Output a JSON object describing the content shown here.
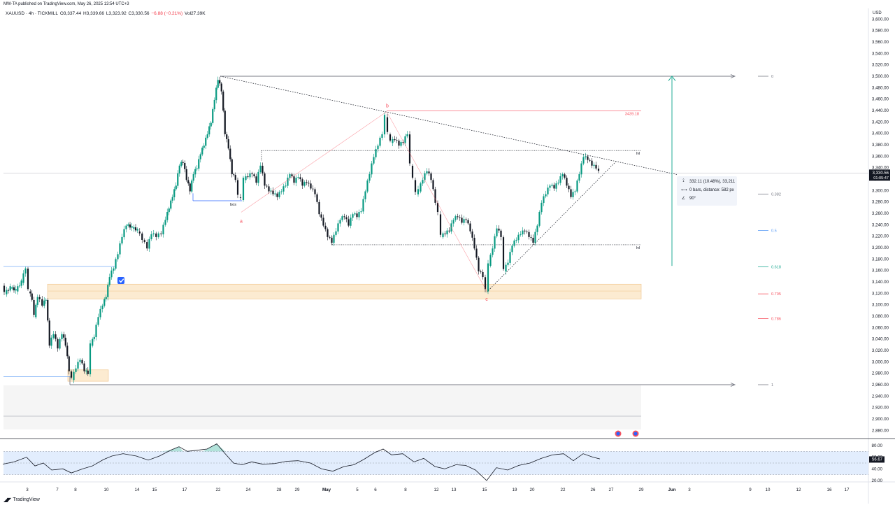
{
  "header": {
    "publisher": "MW-TA published on TradingView.com, May 26, 2025 13:54 UTC+3",
    "symbol": "XAUUSD · 4h · TICKMILL",
    "open": "O3,337.44",
    "high": "H3,339.66",
    "low": "L3,323.92",
    "close": "C3,330.56",
    "change": "−6.88 (−0.21%)",
    "volume": "Vol27.39K",
    "currency": "USD"
  },
  "footer": {
    "brand": "TradingView"
  },
  "colors": {
    "bull": "#089981",
    "bear": "#131722",
    "fib_0": "#787b86",
    "fib_0382": "#787b86",
    "fib_05": "#5b9cf6",
    "fib_0618": "#22ab94",
    "fib_0705": "#f7525f",
    "fib_0786": "#f7525f",
    "wave": "#f7525f",
    "zone": "#fbe4c2",
    "arrow": "#22ab94",
    "rsi_band": "#dbe9fd"
  },
  "chart_data": [
    {
      "type": "candlestick",
      "symbol": "XAUUSD",
      "interval": "4h",
      "x_labels": [
        "3",
        "7",
        "8",
        "10",
        "14",
        "15",
        "17",
        "22",
        "24",
        "28",
        "29",
        "May",
        "5",
        "6",
        "8",
        "12",
        "13",
        "15",
        "19",
        "20",
        "22",
        "26",
        "27",
        "29",
        "Jun",
        "3",
        "9",
        "10",
        "12",
        "16",
        "17"
      ],
      "y_ticks": [
        2880,
        2900,
        2920,
        2940,
        2960,
        2980,
        3000,
        3020,
        3040,
        3060,
        3080,
        3100,
        3120,
        3140,
        3160,
        3180,
        3200,
        3220,
        3240,
        3260,
        3280,
        3300,
        3320,
        3340,
        3360,
        3380,
        3400,
        3420,
        3440,
        3460,
        3480,
        3500,
        3520,
        3540,
        3560,
        3580,
        3600
      ],
      "ylim": [
        2870,
        3620
      ],
      "last_price": "3,330.56",
      "countdown": "01:05:47",
      "price_path": [
        [
          4,
          3135
        ],
        [
          8,
          3120
        ],
        [
          16,
          3130
        ],
        [
          24,
          3125
        ],
        [
          32,
          3140
        ],
        [
          38,
          3165
        ],
        [
          42,
          3125
        ],
        [
          47,
          3110
        ],
        [
          50,
          3080
        ],
        [
          55,
          3115
        ],
        [
          62,
          3100
        ],
        [
          67,
          3110
        ],
        [
          72,
          3030
        ],
        [
          78,
          3050
        ],
        [
          84,
          3025
        ],
        [
          90,
          3050
        ],
        [
          95,
          3030
        ],
        [
          100,
          2985
        ],
        [
          104,
          2970
        ],
        [
          110,
          2990
        ],
        [
          116,
          3005
        ],
        [
          122,
          2985
        ],
        [
          127,
          2980
        ],
        [
          131,
          3030
        ],
        [
          136,
          3045
        ],
        [
          142,
          3080
        ],
        [
          148,
          3100
        ],
        [
          153,
          3115
        ],
        [
          158,
          3150
        ],
        [
          164,
          3165
        ],
        [
          170,
          3190
        ],
        [
          176,
          3220
        ],
        [
          182,
          3240
        ],
        [
          190,
          3235
        ],
        [
          198,
          3230
        ],
        [
          205,
          3215
        ],
        [
          212,
          3200
        ],
        [
          218,
          3225
        ],
        [
          225,
          3220
        ],
        [
          232,
          3225
        ],
        [
          238,
          3250
        ],
        [
          243,
          3270
        ],
        [
          248,
          3290
        ],
        [
          253,
          3310
        ],
        [
          258,
          3345
        ],
        [
          263,
          3350
        ],
        [
          268,
          3320
        ],
        [
          273,
          3300
        ],
        [
          278,
          3330
        ],
        [
          283,
          3340
        ],
        [
          288,
          3365
        ],
        [
          293,
          3380
        ],
        [
          298,
          3400
        ],
        [
          303,
          3420
        ],
        [
          308,
          3460
        ],
        [
          313,
          3495
        ],
        [
          318,
          3475
        ],
        [
          323,
          3400
        ],
        [
          328,
          3375
        ],
        [
          333,
          3330
        ],
        [
          338,
          3320
        ],
        [
          342,
          3290
        ],
        [
          346,
          3285
        ],
        [
          350,
          3320
        ],
        [
          356,
          3325
        ],
        [
          362,
          3330
        ],
        [
          368,
          3315
        ],
        [
          374,
          3345
        ],
        [
          380,
          3310
        ],
        [
          386,
          3300
        ],
        [
          392,
          3295
        ],
        [
          398,
          3290
        ],
        [
          404,
          3300
        ],
        [
          410,
          3310
        ],
        [
          416,
          3330
        ],
        [
          422,
          3315
        ],
        [
          428,
          3325
        ],
        [
          434,
          3310
        ],
        [
          440,
          3315
        ],
        [
          446,
          3305
        ],
        [
          452,
          3295
        ],
        [
          458,
          3260
        ],
        [
          464,
          3240
        ],
        [
          470,
          3220
        ],
        [
          476,
          3210
        ],
        [
          482,
          3230
        ],
        [
          488,
          3250
        ],
        [
          494,
          3255
        ],
        [
          500,
          3240
        ],
        [
          506,
          3260
        ],
        [
          512,
          3255
        ],
        [
          518,
          3265
        ],
        [
          524,
          3300
        ],
        [
          530,
          3330
        ],
        [
          536,
          3360
        ],
        [
          542,
          3380
        ],
        [
          548,
          3400
        ],
        [
          552,
          3430
        ],
        [
          556,
          3400
        ],
        [
          560,
          3385
        ],
        [
          566,
          3390
        ],
        [
          572,
          3380
        ],
        [
          578,
          3385
        ],
        [
          584,
          3400
        ],
        [
          588,
          3345
        ],
        [
          592,
          3320
        ],
        [
          596,
          3295
        ],
        [
          600,
          3300
        ],
        [
          606,
          3320
        ],
        [
          612,
          3335
        ],
        [
          618,
          3320
        ],
        [
          624,
          3280
        ],
        [
          628,
          3260
        ],
        [
          632,
          3220
        ],
        [
          638,
          3225
        ],
        [
          644,
          3230
        ],
        [
          650,
          3250
        ],
        [
          656,
          3255
        ],
        [
          662,
          3245
        ],
        [
          668,
          3250
        ],
        [
          674,
          3230
        ],
        [
          680,
          3200
        ],
        [
          686,
          3160
        ],
        [
          692,
          3150
        ],
        [
          696,
          3125
        ],
        [
          700,
          3170
        ],
        [
          706,
          3200
        ],
        [
          712,
          3235
        ],
        [
          718,
          3220
        ],
        [
          722,
          3160
        ],
        [
          728,
          3175
        ],
        [
          734,
          3205
        ],
        [
          740,
          3215
        ],
        [
          746,
          3225
        ],
        [
          752,
          3230
        ],
        [
          758,
          3220
        ],
        [
          764,
          3210
        ],
        [
          770,
          3240
        ],
        [
          776,
          3280
        ],
        [
          782,
          3295
        ],
        [
          788,
          3310
        ],
        [
          794,
          3305
        ],
        [
          800,
          3315
        ],
        [
          806,
          3330
        ],
        [
          812,
          3310
        ],
        [
          818,
          3290
        ],
        [
          824,
          3300
        ],
        [
          830,
          3330
        ],
        [
          836,
          3360
        ],
        [
          842,
          3355
        ],
        [
          848,
          3345
        ],
        [
          854,
          3340
        ],
        [
          858,
          3332
        ]
      ]
    },
    {
      "type": "line",
      "name": "RSI",
      "ylim": [
        15,
        90
      ],
      "y_ticks": [
        20,
        40,
        60,
        80
      ],
      "band": [
        30,
        70
      ],
      "last_value": "56.67",
      "values": [
        [
          4,
          48
        ],
        [
          20,
          52
        ],
        [
          38,
          60
        ],
        [
          50,
          45
        ],
        [
          62,
          50
        ],
        [
          74,
          38
        ],
        [
          90,
          40
        ],
        [
          102,
          33
        ],
        [
          118,
          40
        ],
        [
          132,
          45
        ],
        [
          148,
          56
        ],
        [
          160,
          62
        ],
        [
          176,
          66
        ],
        [
          195,
          62
        ],
        [
          212,
          55
        ],
        [
          228,
          62
        ],
        [
          244,
          72
        ],
        [
          256,
          78
        ],
        [
          268,
          70
        ],
        [
          282,
          72
        ],
        [
          296,
          74
        ],
        [
          310,
          83
        ],
        [
          322,
          66
        ],
        [
          334,
          50
        ],
        [
          346,
          47
        ],
        [
          360,
          52
        ],
        [
          376,
          48
        ],
        [
          392,
          49
        ],
        [
          410,
          53
        ],
        [
          426,
          54
        ],
        [
          444,
          50
        ],
        [
          460,
          40
        ],
        [
          476,
          36
        ],
        [
          492,
          44
        ],
        [
          506,
          47
        ],
        [
          520,
          56
        ],
        [
          536,
          68
        ],
        [
          548,
          74
        ],
        [
          560,
          64
        ],
        [
          576,
          66
        ],
        [
          592,
          52
        ],
        [
          606,
          58
        ],
        [
          622,
          44
        ],
        [
          636,
          40
        ],
        [
          652,
          47
        ],
        [
          666,
          46
        ],
        [
          680,
          38
        ],
        [
          696,
          20
        ],
        [
          710,
          42
        ],
        [
          726,
          38
        ],
        [
          742,
          46
        ],
        [
          758,
          50
        ],
        [
          774,
          58
        ],
        [
          790,
          64
        ],
        [
          806,
          66
        ],
        [
          820,
          54
        ],
        [
          834,
          66
        ],
        [
          848,
          60
        ],
        [
          858,
          57
        ]
      ]
    }
  ],
  "annotations": {
    "wave_labels": [
      "a",
      "b",
      "c"
    ],
    "level_tags": [
      "bos",
      "lvl",
      "lvl"
    ],
    "price_tag": "3439.18",
    "fib_labels": [
      "0",
      "0.382",
      "0.5",
      "0.618",
      "0.705",
      "0.786",
      "1"
    ],
    "measure": {
      "range": "332.11 (10.48%), 33,211",
      "bars": "0 bars, distance: 582 px",
      "angle": "90°"
    }
  }
}
